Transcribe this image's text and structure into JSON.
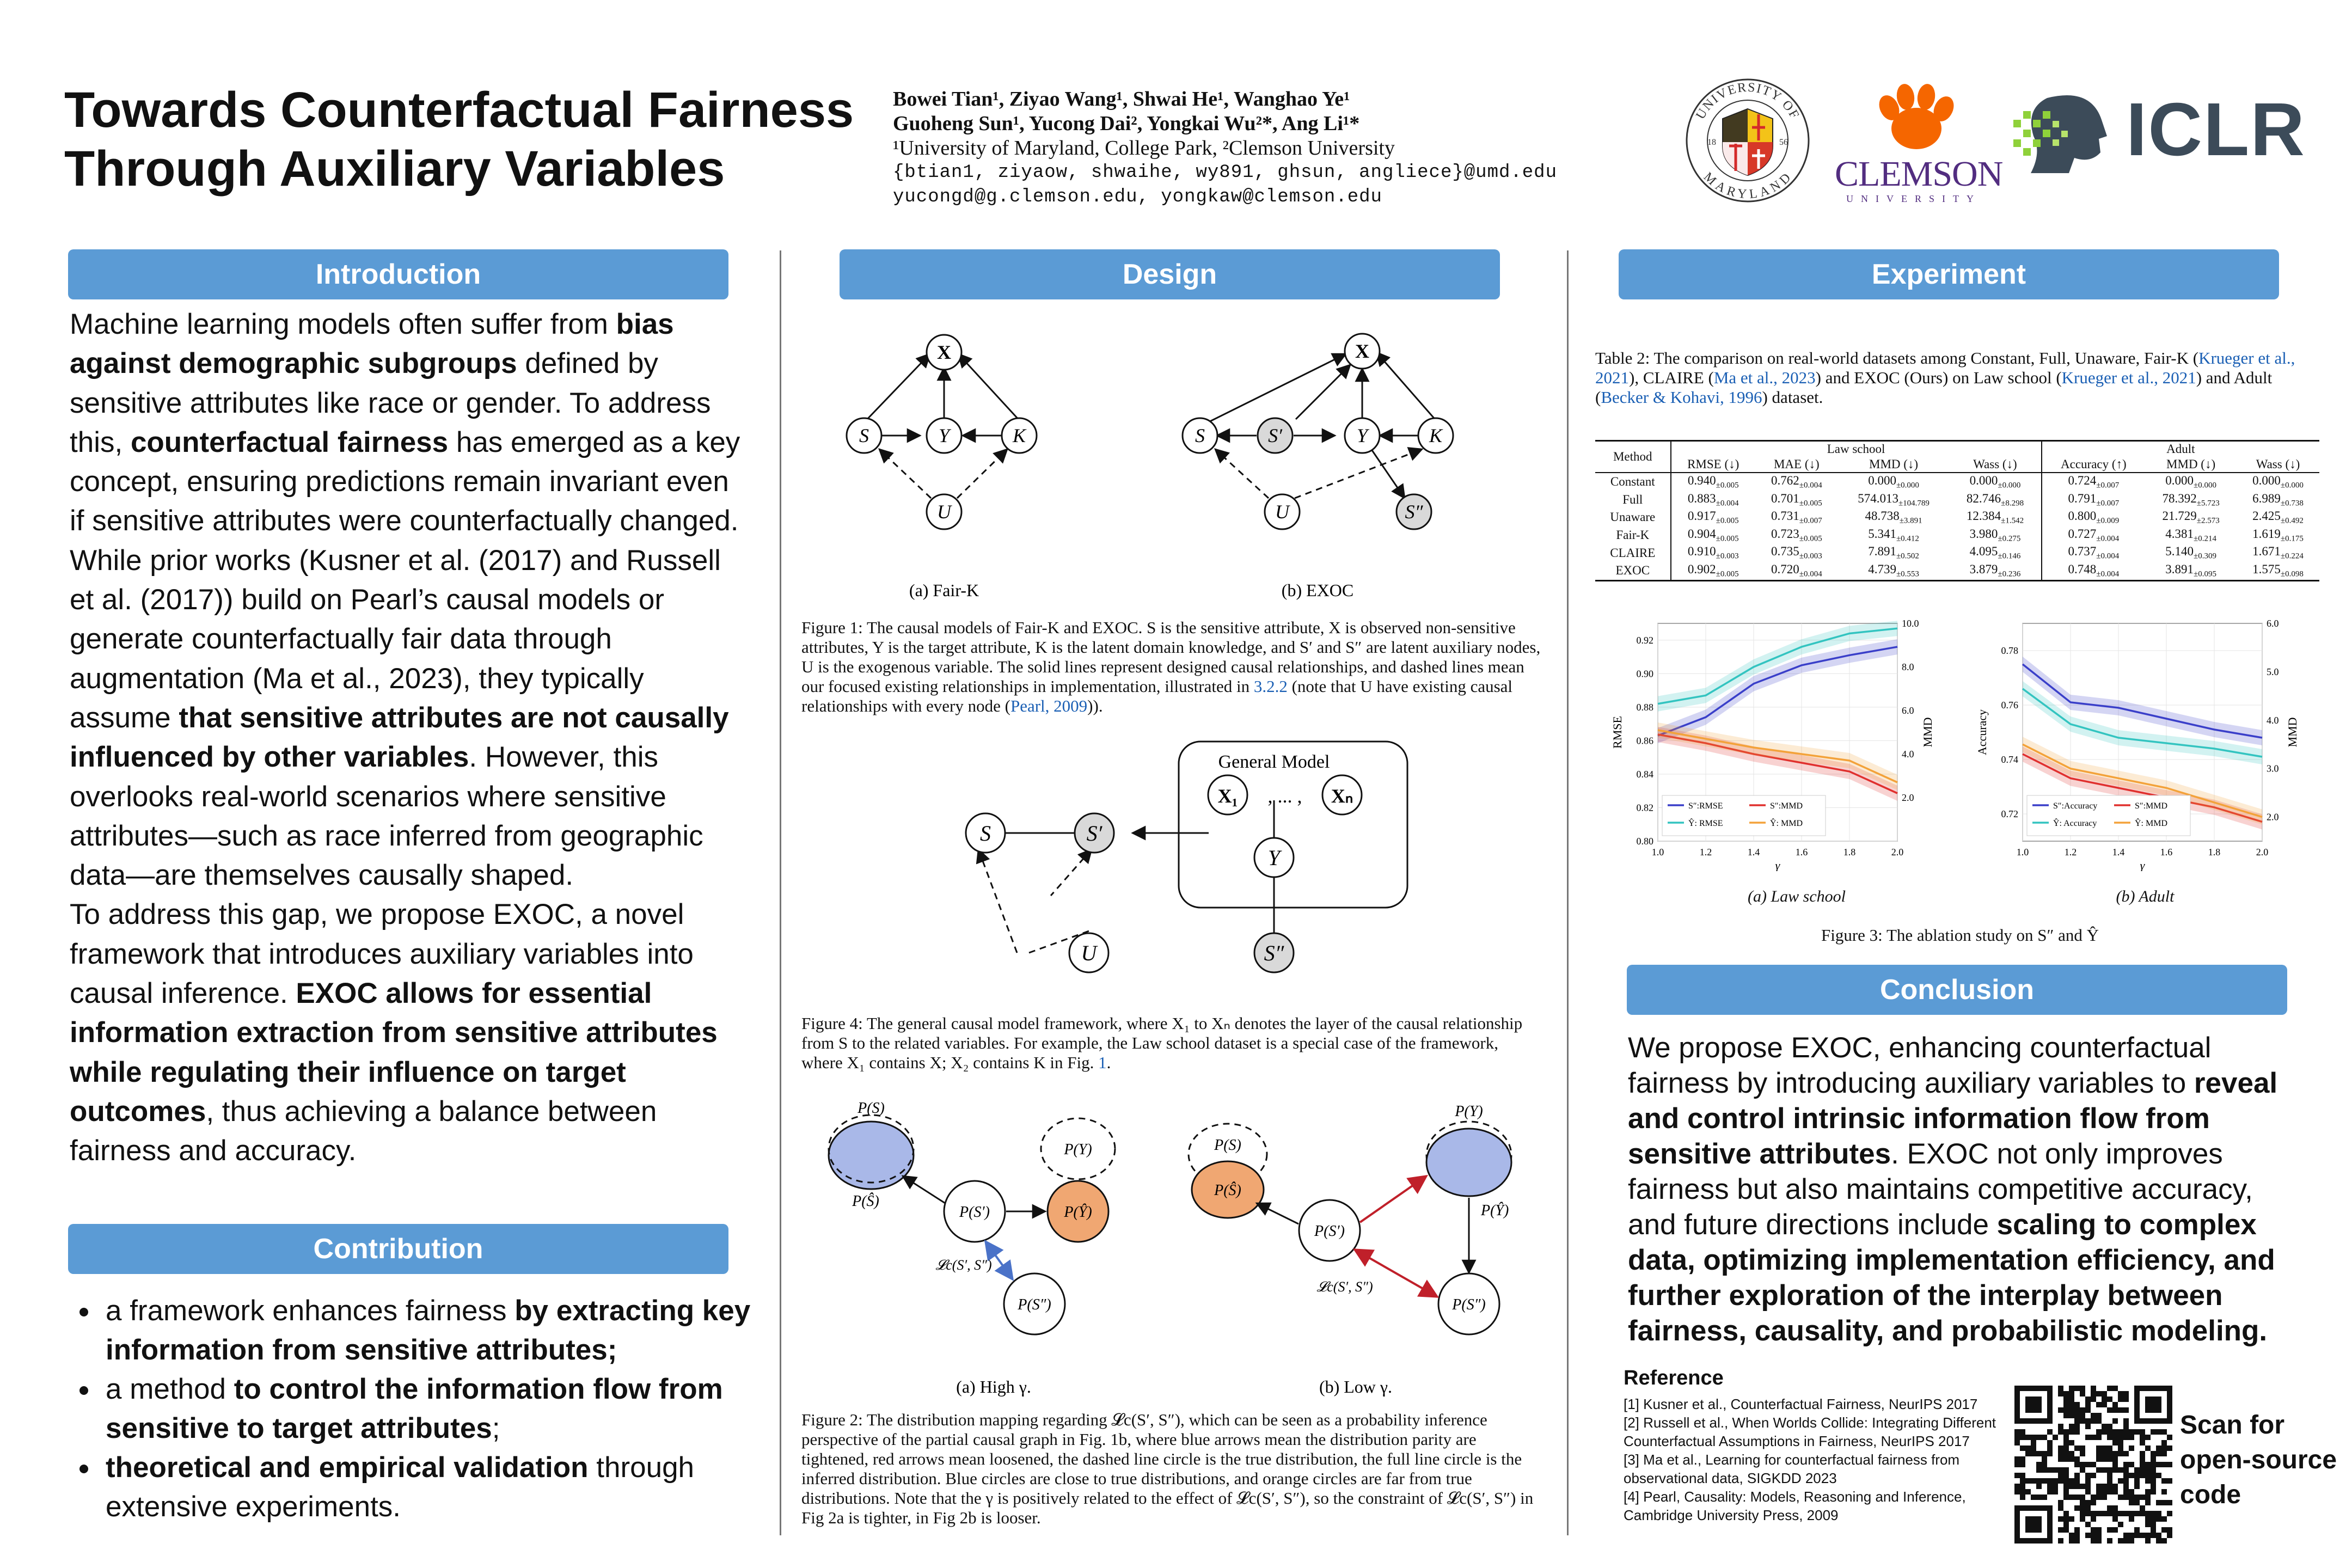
{
  "title_line1": "Towards Counterfactual Fairness",
  "title_line2": "Through Auxiliary Variables",
  "authors": {
    "line1": "Bowei Tian¹, Ziyao Wang¹, Shwai He¹, Wanghao Ye¹",
    "line2": "Guoheng Sun¹, Yucong Dai², Yongkai Wu²*, Ang Li¹*",
    "line3": "¹University of Maryland, College Park, ²Clemson University",
    "line4": "{btian1, ziyaow, shwaihe, wy891, ghsun, angliece}@umd.edu",
    "line5": "yucongd@g.clemson.edu, yongkaw@clemson.edu"
  },
  "logos": {
    "umd_top": "UNIVERSITY OF",
    "umd_bottom": "MARYLAND",
    "umd_year_left": "18",
    "umd_year_right": "56",
    "clemson_word": "CLEMSON",
    "clemson_sub": "UNIVERSITY",
    "iclr": "ICLR"
  },
  "headers": {
    "introduction": "Introduction",
    "contribution": "Contribution",
    "design": "Design",
    "experiment": "Experiment",
    "conclusion": "Conclusion"
  },
  "introduction": {
    "p1_a": "Machine learning models often suffer from ",
    "p1_b": "bias against demographic subgroups",
    "p1_c": " defined by sensitive attributes like race or gender. To address this, ",
    "p1_d": "counterfactual fairness",
    "p1_e": " has emerged as a key concept, ensuring predictions remain invariant even if sensitive attributes were counterfactually changed. While prior works (Kusner et al. (2017) and Russell et al. (2017)) build on Pearl’s causal models or generate counterfactually fair data through augmentation (Ma et al., 2023), they typically assume ",
    "p1_f": "that sensitive attributes are not causally influenced by other variables",
    "p1_g": ". However, this overlooks real-world scenarios where sensitive attributes—such as race inferred from geographic data—are themselves causally shaped.",
    "p2_a": "To address this gap, we propose EXOC, a novel framework that introduces auxiliary variables into causal inference. ",
    "p2_b": "EXOC allows for essential information extraction from sensitive attributes while regulating their influence on target outcomes",
    "p2_c": ", thus achieving a balance between fairness and accuracy."
  },
  "contribution": {
    "item1_a": "a framework enhances fairness ",
    "item1_b": "by extracting key information from sensitive attributes;",
    "item2_a": "a method ",
    "item2_b": "to control the information flow from sensitive to target attributes",
    "item2_c": ";",
    "item3_a": "theoretical and empirical validation",
    "item3_b": " through extensive experiments."
  },
  "design": {
    "fig1_sub_a": "(a) Fair-K",
    "fig1_sub_b": "(b) EXOC",
    "fig1_caption_a": "Figure 1:  The causal models of Fair-K and EXOC. S is the sensitive attribute, X is observed non-sensitive attributes, Y is the target attribute, K is the latent domain knowledge, and S′ and S″ are latent auxiliary nodes, U is the exogenous variable. The solid lines represent designed causal relationships, and dashed lines mean our focused existing relationships in implementation, illustrated in ",
    "fig1_caption_ref1": "3.2.2",
    "fig1_caption_b": " (note that U have existing causal relationships with every node (",
    "fig1_caption_ref2": "Pearl, 2009",
    "fig1_caption_c": ")).",
    "node_x": "X",
    "node_s": "S",
    "node_y": "Y",
    "node_k": "K",
    "node_u": "U",
    "node_sp": "S′",
    "node_spp": "S″",
    "general_model": "General Model",
    "node_x1": "X₁",
    "node_xn": "Xₙ",
    "node_dots": ", ... ,",
    "fig4_caption_a": "Figure 4:  The general causal model framework, where X₁ to Xₙ denotes the layer of the causal relationship from S to the related variables. For example, the Law school dataset is a special case of the framework, where X₁ contains X; X₂ contains K in Fig. ",
    "fig4_caption_ref": "1",
    "fig4_caption_b": ".",
    "fig2_ps": "P(S)",
    "fig2_pshat": "P(Ŝ)",
    "fig2_py": "P(Y)",
    "fig2_pyhat": "P(Ŷ)",
    "fig2_psp": "P(S′)",
    "fig2_pspp": "P(S″)",
    "fig2_loss": "𝓛c(S′, S″)",
    "fig2_sub_a": "(a) High γ.",
    "fig2_sub_b": "(b) Low γ.",
    "fig2_caption": "Figure 2:  The distribution mapping regarding 𝓛c(S′, S″), which can be seen as a probability inference perspective of the partial causal graph in Fig. 1b, where blue arrows mean the distribution parity are tightened, red arrows mean loosened, the dashed line circle is the true distribution, the full line circle is the inferred distribution. Blue circles are close to true distributions, and orange circles are far from true distributions.  Note that the γ is positively related to the effect of 𝓛c(S′, S″), so the constraint of 𝓛c(S′, S″) in Fig 2a is tighter, in Fig 2b is looser."
  },
  "experiment": {
    "table_caption_a": "Table 2:  The comparison on real-world datasets among Constant, Full, Unaware, Fair-K (",
    "table_caption_ref1": "Krueger et al., 2021",
    "table_caption_b": "), CLAIRE (",
    "table_caption_ref2": "Ma et al., 2023",
    "table_caption_c": ") and EXOC (Ours) on Law school (",
    "table_caption_ref3": "Krueger et al., 2021",
    "table_caption_d": ") and Adult (",
    "table_caption_ref4": "Becker & Kohavi, 1996",
    "table_caption_e": ") dataset.",
    "table": {
      "group_law": "Law school",
      "group_adult": "Adult",
      "col_method": "Method",
      "cols": [
        "RMSE (↓)",
        "MAE (↓)",
        "MMD (↓)",
        "Wass (↓)",
        "Accuracy (↑)",
        "MMD (↓)",
        "Wass (↓)"
      ],
      "rows": [
        {
          "method": "Constant",
          "cells": [
            [
              "0.940",
              "0.005"
            ],
            [
              "0.762",
              "0.004"
            ],
            [
              "0.000",
              "0.000"
            ],
            [
              "0.000",
              "0.000"
            ],
            [
              "0.724",
              "0.007"
            ],
            [
              "0.000",
              "0.000"
            ],
            [
              "0.000",
              "0.000"
            ]
          ]
        },
        {
          "method": "Full",
          "cells": [
            [
              "0.883",
              "0.004"
            ],
            [
              "0.701",
              "0.005"
            ],
            [
              "574.013",
              "104.789"
            ],
            [
              "82.746",
              "8.298"
            ],
            [
              "0.791",
              "0.007"
            ],
            [
              "78.392",
              "5.723"
            ],
            [
              "6.989",
              "0.738"
            ]
          ]
        },
        {
          "method": "Unaware",
          "cells": [
            [
              "0.917",
              "0.005"
            ],
            [
              "0.731",
              "0.007"
            ],
            [
              "48.738",
              "3.891"
            ],
            [
              "12.384",
              "1.542"
            ],
            [
              "0.800",
              "0.009"
            ],
            [
              "21.729",
              "2.573"
            ],
            [
              "2.425",
              "0.492"
            ]
          ]
        },
        {
          "method": "Fair-K",
          "cells": [
            [
              "0.904",
              "0.005"
            ],
            [
              "0.723",
              "0.005"
            ],
            [
              "5.341",
              "0.412"
            ],
            [
              "3.980",
              "0.275"
            ],
            [
              "0.727",
              "0.004"
            ],
            [
              "4.381",
              "0.214"
            ],
            [
              "1.619",
              "0.175"
            ]
          ]
        },
        {
          "method": "CLAIRE",
          "cells": [
            [
              "0.910",
              "0.003"
            ],
            [
              "0.735",
              "0.003"
            ],
            [
              "7.891",
              "0.502"
            ],
            [
              "4.095",
              "0.146"
            ],
            [
              "0.737",
              "0.004"
            ],
            [
              "5.140",
              "0.309"
            ],
            [
              "1.671",
              "0.224"
            ]
          ]
        },
        {
          "method": "EXOC",
          "cells": [
            [
              "0.902",
              "0.005"
            ],
            [
              "0.720",
              "0.004"
            ],
            [
              "4.739",
              "0.553"
            ],
            [
              "3.879",
              "0.236"
            ],
            [
              "0.748",
              "0.004"
            ],
            [
              "3.891",
              "0.095"
            ],
            [
              "1.575",
              "0.098"
            ]
          ]
        }
      ]
    },
    "fig3_sub_a": "(a) Law school",
    "fig3_sub_b": "(b) Adult",
    "fig3_caption": "Figure 3: The ablation study on S″ and Ŷ"
  },
  "chart_data": [
    {
      "type": "line",
      "title": "",
      "xlabel": "γ",
      "ylabel": "RMSE",
      "y2label": "MMD",
      "xlim": [
        1.0,
        2.0
      ],
      "ylim": [
        0.8,
        0.93
      ],
      "y2lim": [
        0.0,
        10.0
      ],
      "xticks": [
        "1.0",
        "1.2",
        "1.4",
        "1.6",
        "1.8",
        "2.0"
      ],
      "yticks": [
        "0.80",
        "0.82",
        "0.84",
        "0.86",
        "0.88",
        "0.90",
        "0.92"
      ],
      "y2ticks": [
        "2.0",
        "4.0",
        "6.0",
        "8.0",
        "10.0"
      ],
      "x": [
        1.0,
        1.2,
        1.4,
        1.6,
        1.8,
        2.0
      ],
      "series": [
        {
          "name": "S″:RMSE",
          "axis": "left",
          "color": "#3a3fc9",
          "values": [
            0.863,
            0.874,
            0.894,
            0.905,
            0.911,
            0.916
          ]
        },
        {
          "name": "Ŷ: RMSE",
          "axis": "left",
          "color": "#33c4c0",
          "values": [
            0.882,
            0.887,
            0.904,
            0.916,
            0.924,
            0.927
          ]
        },
        {
          "name": "S″:MMD",
          "axis": "right",
          "color": "#e0302e",
          "values": [
            4.9,
            4.5,
            4.0,
            3.6,
            3.2,
            2.2
          ]
        },
        {
          "name": "Ŷ: MMD",
          "axis": "right",
          "color": "#f3a23a",
          "values": [
            5.1,
            4.7,
            4.3,
            4.0,
            3.7,
            2.7
          ]
        }
      ],
      "legend": "lower-left"
    },
    {
      "type": "line",
      "title": "",
      "xlabel": "γ",
      "ylabel": "Accuracy",
      "y2label": "MMD",
      "xlim": [
        1.0,
        2.0
      ],
      "ylim": [
        0.71,
        0.79
      ],
      "y2lim": [
        1.5,
        6.0
      ],
      "xticks": [
        "1.0",
        "1.2",
        "1.4",
        "1.6",
        "1.8",
        "2.0"
      ],
      "yticks": [
        "0.72",
        "0.74",
        "0.76",
        "0.78"
      ],
      "y2ticks": [
        "2.0",
        "3.0",
        "4.0",
        "5.0",
        "6.0"
      ],
      "x": [
        1.0,
        1.2,
        1.4,
        1.6,
        1.8,
        2.0
      ],
      "series": [
        {
          "name": "S″:Accuracy",
          "axis": "left",
          "color": "#3a3fc9",
          "values": [
            0.775,
            0.761,
            0.759,
            0.755,
            0.751,
            0.748
          ]
        },
        {
          "name": "Ŷ: Accuracy",
          "axis": "left",
          "color": "#33c4c0",
          "values": [
            0.766,
            0.753,
            0.748,
            0.746,
            0.744,
            0.741
          ]
        },
        {
          "name": "S″:MMD",
          "axis": "right",
          "color": "#e0302e",
          "values": [
            3.3,
            2.8,
            2.6,
            2.4,
            2.2,
            1.9
          ]
        },
        {
          "name": "Ŷ: MMD",
          "axis": "right",
          "color": "#f3a23a",
          "values": [
            3.5,
            3.0,
            2.8,
            2.6,
            2.3,
            2.0
          ]
        }
      ],
      "legend": "lower-left"
    }
  ],
  "conclusion": {
    "a": "We propose EXOC, enhancing counterfactual fairness by introducing auxiliary variables to ",
    "b": "reveal and control intrinsic information flow from sensitive attributes",
    "c": ". EXOC not only improves fairness but also maintains competitive accuracy, and future directions include ",
    "d": "scaling to complex data, optimizing implementation efficiency, and further exploration of the interplay between fairness, causality, and probabilistic modeling."
  },
  "reference": {
    "title": "Reference",
    "items": [
      "[1] Kusner et al., Counterfactual Fairness, NeurIPS 2017",
      "[2] Russell et al., When Worlds Collide: Integrating Different Counterfactual Assumptions in Fairness, NeurIPS 2017",
      "[3] Ma et al., Learning for counterfactual fairness from observational data,  SIGKDD 2023",
      "[4] Pearl, Causality: Models, Reasoning and Inference, Cambridge University Press, 2009"
    ]
  },
  "qr": {
    "line1": "Scan for",
    "line2": "open-source",
    "line3": "code"
  },
  "colors": {
    "header_blue": "#5b9bd5",
    "node_gray": "#d9d9d9",
    "circle_blue": "#a9b8e8",
    "circle_orange": "#f0a772",
    "arrow_red": "#c0202a",
    "arrow_blue": "#4a72c8"
  }
}
